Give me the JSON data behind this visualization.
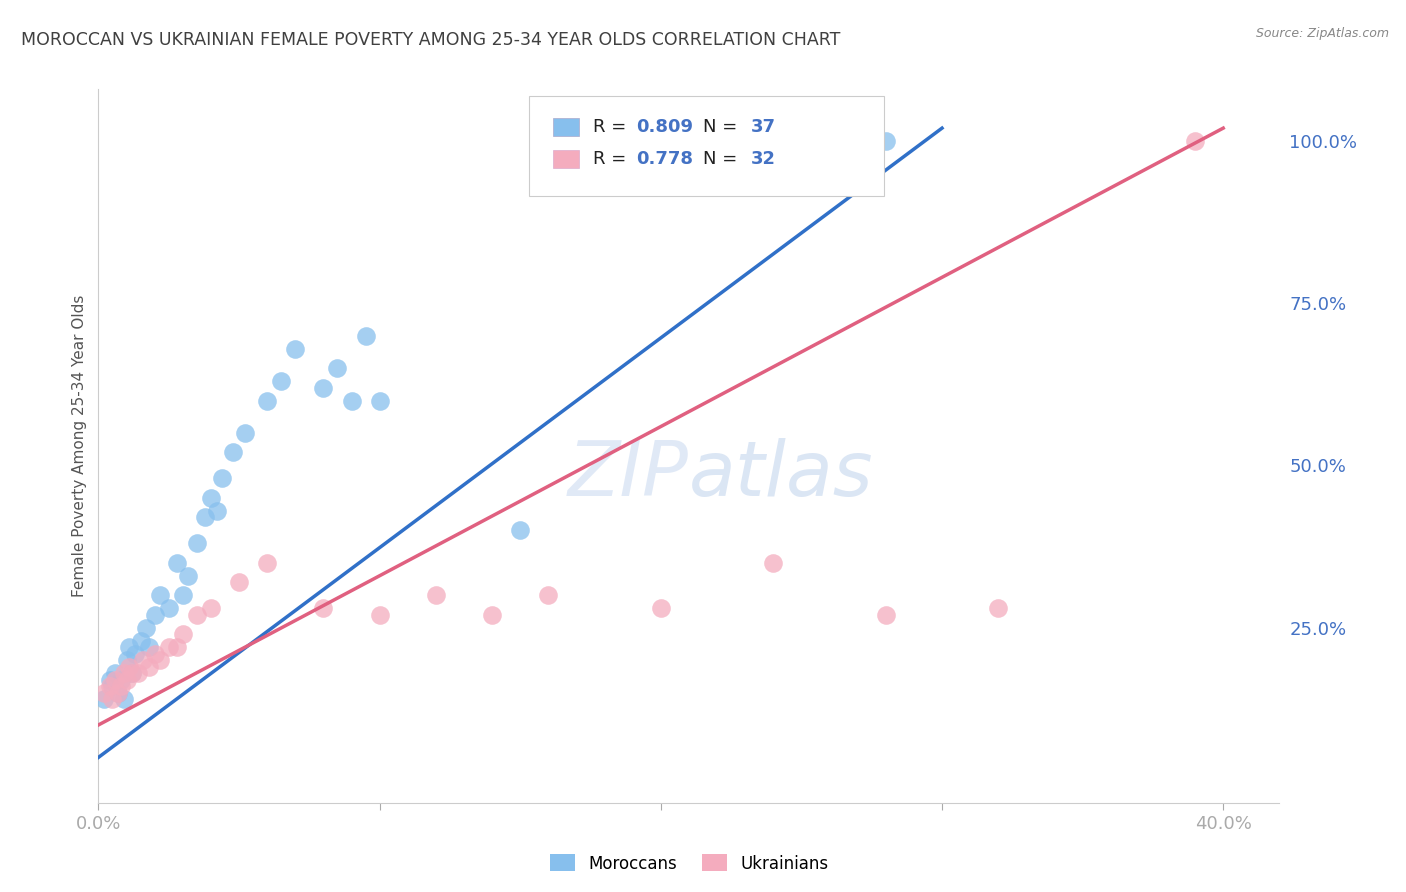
{
  "title": "MOROCCAN VS UKRAINIAN FEMALE POVERTY AMONG 25-34 YEAR OLDS CORRELATION CHART",
  "source": "Source: ZipAtlas.com",
  "ylabel": "Female Poverty Among 25-34 Year Olds",
  "xlim": [
    0.0,
    0.42
  ],
  "ylim": [
    -0.02,
    1.08
  ],
  "yticks_right": [
    0.0,
    0.25,
    0.5,
    0.75,
    1.0
  ],
  "ytick_labels_right": [
    "",
    "25.0%",
    "50.0%",
    "75.0%",
    "100.0%"
  ],
  "moroccan_R": 0.809,
  "moroccan_N": 37,
  "ukrainian_R": 0.778,
  "ukrainian_N": 32,
  "moroccan_color": "#87BFED",
  "ukrainian_color": "#F4ACBE",
  "moroccan_line_color": "#3070C8",
  "ukrainian_line_color": "#E06080",
  "background_color": "#FFFFFF",
  "grid_color": "#CCCCCC",
  "tick_label_color": "#4472C4",
  "title_color": "#404040",
  "watermark": "ZIPatlas",
  "moroccan_line_x0": 0.0,
  "moroccan_line_y0": 0.05,
  "moroccan_line_x1": 0.3,
  "moroccan_line_y1": 1.02,
  "ukrainian_line_x0": 0.0,
  "ukrainian_line_y0": 0.1,
  "ukrainian_line_x1": 0.4,
  "ukrainian_line_y1": 1.02,
  "moroccan_x": [
    0.002,
    0.004,
    0.005,
    0.006,
    0.007,
    0.008,
    0.009,
    0.01,
    0.011,
    0.012,
    0.013,
    0.015,
    0.017,
    0.018,
    0.02,
    0.022,
    0.025,
    0.028,
    0.03,
    0.032,
    0.035,
    0.038,
    0.04,
    0.042,
    0.044,
    0.048,
    0.052,
    0.06,
    0.065,
    0.07,
    0.08,
    0.085,
    0.09,
    0.095,
    0.1,
    0.15,
    0.28
  ],
  "moroccan_y": [
    0.14,
    0.17,
    0.16,
    0.18,
    0.15,
    0.17,
    0.14,
    0.2,
    0.22,
    0.18,
    0.21,
    0.23,
    0.25,
    0.22,
    0.27,
    0.3,
    0.28,
    0.35,
    0.3,
    0.33,
    0.38,
    0.42,
    0.45,
    0.43,
    0.48,
    0.52,
    0.55,
    0.6,
    0.63,
    0.68,
    0.62,
    0.65,
    0.6,
    0.7,
    0.6,
    0.4,
    1.0
  ],
  "ukrainian_x": [
    0.002,
    0.004,
    0.005,
    0.006,
    0.007,
    0.008,
    0.009,
    0.01,
    0.011,
    0.012,
    0.014,
    0.016,
    0.018,
    0.02,
    0.022,
    0.025,
    0.028,
    0.03,
    0.035,
    0.04,
    0.05,
    0.06,
    0.08,
    0.1,
    0.12,
    0.14,
    0.16,
    0.2,
    0.24,
    0.28,
    0.32,
    0.39
  ],
  "ukrainian_y": [
    0.15,
    0.16,
    0.14,
    0.17,
    0.15,
    0.16,
    0.18,
    0.17,
    0.19,
    0.18,
    0.18,
    0.2,
    0.19,
    0.21,
    0.2,
    0.22,
    0.22,
    0.24,
    0.27,
    0.28,
    0.32,
    0.35,
    0.28,
    0.27,
    0.3,
    0.27,
    0.3,
    0.28,
    0.35,
    0.27,
    0.28,
    1.0
  ]
}
